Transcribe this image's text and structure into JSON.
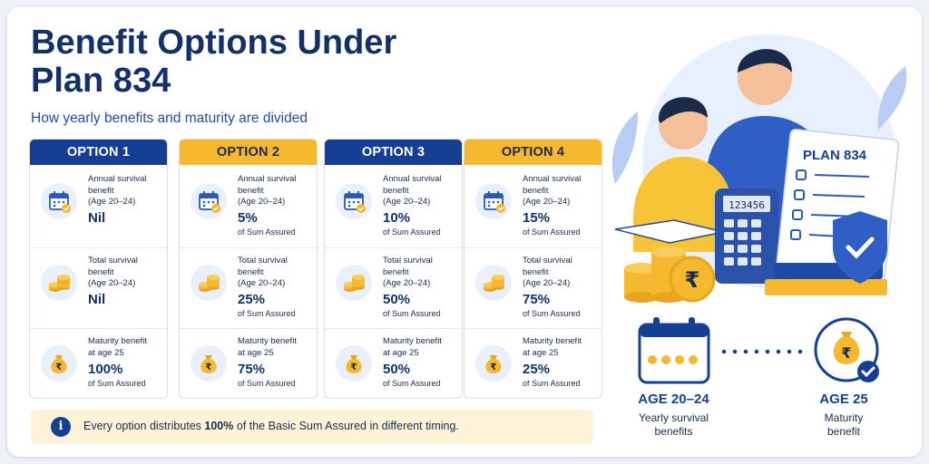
{
  "header": {
    "title": "Benefit Options Under Plan 834",
    "subtitle": "How yearly benefits and maturity are divided"
  },
  "labels": {
    "annual_line1": "Annual survival",
    "annual_line2": "benefit",
    "age_range": "(Age 20–24)",
    "total_line1": "Total survival",
    "total_line2": "benefit",
    "maturity_line1": "Maturity benefit",
    "maturity_line2": "at age 25",
    "sum_assured": "of Sum Assured"
  },
  "options": [
    {
      "name": "OPTION 1",
      "annual": "Nil",
      "total": "Nil",
      "maturity": "100%",
      "header_color": "#163f93"
    },
    {
      "name": "OPTION 2",
      "annual": "5%",
      "total": "25%",
      "maturity": "75%",
      "header_color": "#f5b82e"
    },
    {
      "name": "OPTION 3",
      "annual": "10%",
      "total": "50%",
      "maturity": "50%",
      "header_color": "#163f93"
    },
    {
      "name": "OPTION 4",
      "annual": "15%",
      "total": "75%",
      "maturity": "25%",
      "header_color": "#f5b82e"
    }
  ],
  "note": {
    "before": "Every option distributes ",
    "bold": "100%",
    "after": " of the Basic Sum Assured in different timing.",
    "icon": "info-icon"
  },
  "illustration": {
    "clipboard_title": "PLAN 834",
    "calculator_display": "123456",
    "coin_symbol": "₹"
  },
  "timeline": {
    "left_label": "AGE 20–24",
    "left_sub1": "Yearly survival",
    "left_sub2": "benefits",
    "right_label": "AGE 25",
    "right_sub1": "Maturity",
    "right_sub2": "benefit"
  },
  "colors": {
    "navy": "#163f93",
    "gold": "#f5b82e",
    "note_bg": "#fdf3d8"
  }
}
